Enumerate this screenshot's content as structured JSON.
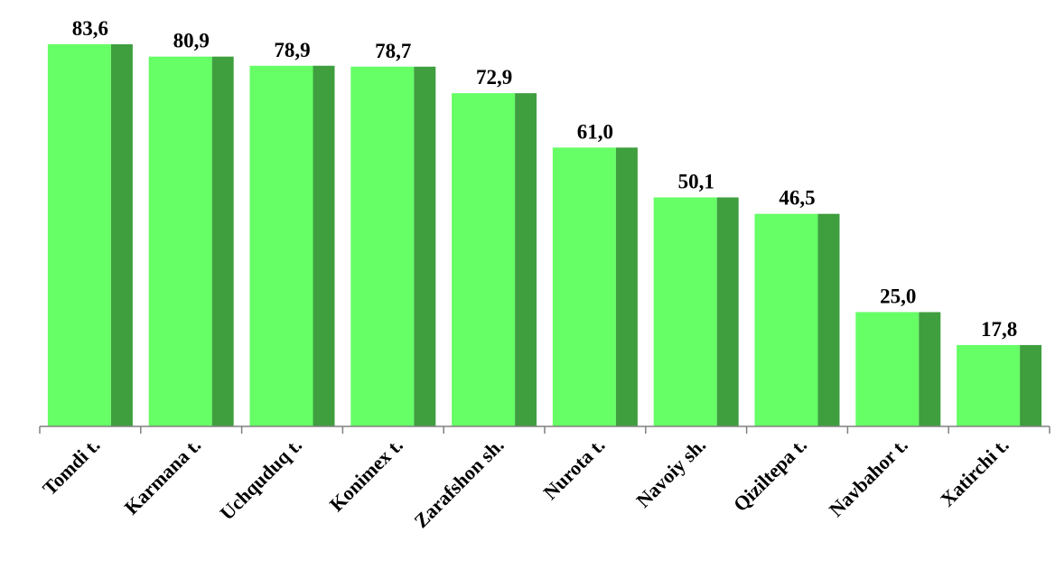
{
  "chart_data": {
    "type": "bar",
    "title": "",
    "xlabel": "",
    "ylabel": "",
    "categories": [
      "Tomdi t.",
      "Karmana t.",
      "Uchquduq t.",
      "Konimex t.",
      "Zarafshon sh.",
      "Nurota t.",
      "Navoiy sh.",
      "Qiziltepa t.",
      "Navbahor t.",
      "Xatirchi t."
    ],
    "values": [
      83.6,
      80.9,
      78.9,
      78.7,
      72.9,
      61.0,
      50.1,
      46.5,
      25.0,
      17.8
    ],
    "value_labels": [
      "83,6",
      "80,9",
      "78,9",
      "78,7",
      "72,9",
      "61,0",
      "50,1",
      "46,5",
      "25,0",
      "17,8"
    ],
    "ylim": [
      0,
      83.6
    ],
    "grid": false,
    "legend": "none",
    "colors": {
      "bar_face": "#66ff66",
      "bar_side": "#3f9f3f",
      "axis": "#808080"
    }
  }
}
